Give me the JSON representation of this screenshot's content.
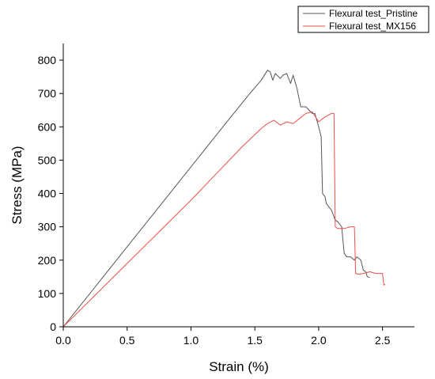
{
  "chart_data": {
    "type": "line",
    "xlabel": "Strain (%)",
    "ylabel": "Stress (MPa)",
    "xlim": [
      0,
      2.75
    ],
    "ylim": [
      0,
      850
    ],
    "xticks": [
      "0.0",
      "0.5",
      "1.0",
      "1.5",
      "2.0",
      "2.5"
    ],
    "yticks": [
      "0",
      "100",
      "200",
      "300",
      "400",
      "500",
      "600",
      "700",
      "800"
    ],
    "legend_position": "top-right",
    "grid": false,
    "series": [
      {
        "name": "Flexural test_Pristine",
        "color": "#555555",
        "x": [
          0,
          0.25,
          0.5,
          0.75,
          1.0,
          1.25,
          1.45,
          1.55,
          1.6,
          1.62,
          1.64,
          1.66,
          1.7,
          1.72,
          1.75,
          1.78,
          1.8,
          1.83,
          1.86,
          1.9,
          1.95,
          1.97,
          2.0,
          2.02,
          2.03,
          2.05,
          2.06,
          2.08,
          2.1,
          2.13,
          2.15,
          2.18,
          2.2,
          2.22,
          2.25,
          2.28,
          2.3,
          2.33,
          2.35,
          2.37,
          2.38,
          2.4
        ],
        "y": [
          0,
          120,
          240,
          360,
          480,
          600,
          695,
          740,
          770,
          765,
          740,
          760,
          745,
          755,
          760,
          730,
          755,
          715,
          660,
          660,
          640,
          640,
          600,
          570,
          400,
          390,
          370,
          360,
          350,
          320,
          315,
          300,
          220,
          210,
          210,
          200,
          210,
          200,
          170,
          165,
          150,
          148
        ]
      },
      {
        "name": "Flexural test_MX156",
        "color": "#e8504a",
        "x": [
          0,
          0.25,
          0.5,
          0.75,
          1.0,
          1.2,
          1.4,
          1.55,
          1.6,
          1.65,
          1.7,
          1.75,
          1.8,
          1.85,
          1.9,
          1.95,
          2.0,
          2.05,
          2.1,
          2.12,
          2.13,
          2.15,
          2.18,
          2.2,
          2.25,
          2.28,
          2.29,
          2.31,
          2.35,
          2.4,
          2.45,
          2.5,
          2.51,
          2.52
        ],
        "y": [
          0,
          95,
          190,
          285,
          380,
          460,
          540,
          595,
          610,
          620,
          605,
          615,
          610,
          625,
          640,
          645,
          615,
          630,
          640,
          640,
          300,
          295,
          295,
          295,
          300,
          300,
          160,
          158,
          160,
          165,
          160,
          160,
          125,
          128
        ]
      }
    ]
  }
}
